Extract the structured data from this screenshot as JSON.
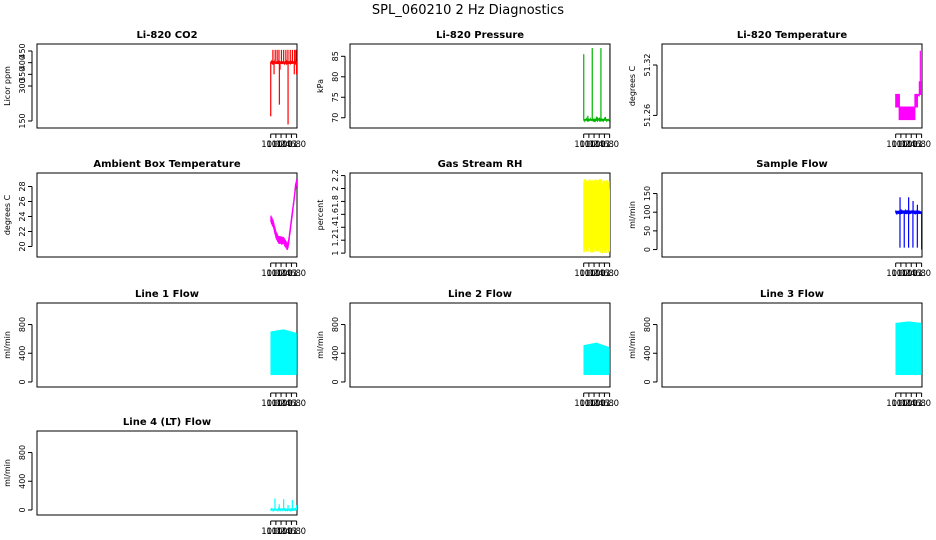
{
  "page": {
    "title": "SPL_060210  2 Hz Diagnostics"
  },
  "chart_data": [
    {
      "type": "line",
      "title": "Li-820 CO2",
      "ylabel": "Licor ppm",
      "color": "#ff0000",
      "xlim": [
        0.985,
        11.015
      ],
      "ylim": [
        120,
        480
      ],
      "xticks": [
        "10.0",
        "10.2",
        "10.4",
        "10.6",
        "10.8",
        "11.0"
      ],
      "yticks": [
        150,
        300,
        350,
        400,
        450
      ],
      "series": [
        {
          "baseline": 400,
          "noise": 6,
          "spikes": [
            [
              10.002,
              170
            ],
            [
              10.085,
              455
            ],
            [
              10.13,
              350
            ],
            [
              10.175,
              455
            ],
            [
              10.25,
              455
            ],
            [
              10.32,
              455
            ],
            [
              10.335,
              220
            ],
            [
              10.36,
              370
            ],
            [
              10.415,
              455
            ],
            [
              10.5,
              455
            ],
            [
              10.585,
              455
            ],
            [
              10.665,
              455
            ],
            [
              10.67,
              135
            ],
            [
              10.755,
              455
            ],
            [
              10.84,
              455
            ],
            [
              10.91,
              350
            ],
            [
              10.925,
              455
            ],
            [
              10.975,
              455
            ],
            [
              11.0,
              350
            ]
          ]
        }
      ]
    },
    {
      "type": "line",
      "title": "Li-820 Pressure",
      "ylabel": "kPa",
      "color": "#00b400",
      "xlim": [
        0.985,
        11.015
      ],
      "ylim": [
        67.5,
        88
      ],
      "xticks": [
        "10.0",
        "10.2",
        "10.4",
        "10.6",
        "10.8",
        "11.0"
      ],
      "yticks": [
        70,
        75,
        80,
        85
      ],
      "series": [
        {
          "baseline": 69.5,
          "noise": 0.2,
          "spikes": [
            [
              10.002,
              85.5
            ],
            [
              10.33,
              87
            ],
            [
              10.665,
              87
            ],
            [
              11.0,
              87
            ],
            [
              10.16,
              70.5
            ],
            [
              10.5,
              70.3
            ],
            [
              10.84,
              70.2
            ]
          ]
        }
      ]
    },
    {
      "type": "area",
      "title": "Li-820 Temperature",
      "ylabel": "degrees C",
      "color": "#ff00ff",
      "xlim": [
        0.985,
        11.015
      ],
      "ylim": [
        51.245,
        51.345
      ],
      "xticks": [
        "10.0",
        "10.2",
        "10.4",
        "10.6",
        "10.8",
        "11.0"
      ],
      "yticks": [
        51.26,
        51.32
      ],
      "series": [
        {
          "bands": [
            [
              10.0,
              10.14,
              51.27,
              51.285
            ],
            [
              10.14,
              10.74,
              51.255,
              51.27
            ],
            [
              10.74,
              10.84,
              51.27,
              51.285
            ],
            [
              10.84,
              10.91,
              51.285,
              51.285
            ],
            [
              10.91,
              11.0,
              51.285,
              51.3
            ]
          ],
          "peak": [
            10.95,
            51.337
          ]
        }
      ]
    },
    {
      "type": "line",
      "title": "Ambient Box Temperature",
      "ylabel": "degrees C",
      "color": "#ff00ff",
      "xlim": [
        0.985,
        11.015
      ],
      "ylim": [
        18.6,
        29.8
      ],
      "xticks": [
        "10.0",
        "10.2",
        "10.4",
        "10.6",
        "10.8",
        "11.0"
      ],
      "yticks": [
        20,
        22,
        24,
        26,
        28
      ],
      "series": [
        {
          "noise": 0.5,
          "points": [
            [
              10.0,
              23.7
            ],
            [
              10.1,
              23.0
            ],
            [
              10.2,
              21.6
            ],
            [
              10.3,
              20.9
            ],
            [
              10.4,
              20.8
            ],
            [
              10.5,
              20.8
            ],
            [
              10.6,
              20.2
            ],
            [
              10.65,
              19.9
            ],
            [
              10.7,
              20.8
            ],
            [
              10.8,
              23.5
            ],
            [
              10.9,
              26.2
            ],
            [
              10.95,
              27.8
            ],
            [
              11.0,
              28.5
            ]
          ]
        }
      ]
    },
    {
      "type": "area",
      "title": "Gas Stream RH",
      "ylabel": "percent",
      "color": "#ffff00",
      "xlim": [
        0.985,
        11.015
      ],
      "ylim": [
        0.94,
        2.24
      ],
      "xticks": [
        "10.0",
        "10.2",
        "10.4",
        "10.6",
        "10.8",
        "11.0"
      ],
      "yticks": [
        1.0,
        1.2,
        1.4,
        1.6,
        1.8,
        2.0,
        2.2
      ],
      "series": [
        {
          "low": 1.0,
          "high": 2.15,
          "core_low": 1.3,
          "core_high": 1.9
        }
      ]
    },
    {
      "type": "line",
      "title": "Sample Flow",
      "ylabel": "ml/min",
      "color": "#0000ff",
      "xlim": [
        0.985,
        11.015
      ],
      "ylim": [
        -20,
        205
      ],
      "xticks": [
        "10.0",
        "10.2",
        "10.4",
        "10.6",
        "10.8",
        "11.0"
      ],
      "yticks": [
        0,
        50,
        100,
        150
      ],
      "series": [
        {
          "baseline": 100,
          "noise": 5,
          "spikes": [
            [
              10.165,
              5
            ],
            [
              10.168,
              140
            ],
            [
              10.33,
              5
            ],
            [
              10.5,
              140
            ],
            [
              10.498,
              5
            ],
            [
              10.665,
              5
            ],
            [
              10.67,
              130
            ],
            [
              10.835,
              5
            ],
            [
              10.838,
              120
            ],
            [
              11.0,
              0
            ]
          ]
        }
      ]
    },
    {
      "type": "area",
      "title": "Line 1 Flow",
      "ylabel": "ml/min",
      "color": "#00ffff",
      "xlim": [
        0.985,
        11.015
      ],
      "ylim": [
        -70,
        1100
      ],
      "xticks": [
        "10.0",
        "10.2",
        "10.4",
        "10.6",
        "10.8",
        "11.0"
      ],
      "yticks": [
        0,
        400,
        800
      ],
      "series": [
        {
          "low": 100,
          "high_start": 700,
          "high_mid": 730,
          "high_end": 680,
          "gaps": [
            10.165,
            10.33,
            10.5,
            10.67,
            10.835
          ]
        }
      ]
    },
    {
      "type": "area",
      "title": "Line 2 Flow",
      "ylabel": "ml/min",
      "color": "#00ffff",
      "xlim": [
        0.985,
        11.015
      ],
      "ylim": [
        -70,
        1100
      ],
      "xticks": [
        "10.0",
        "10.2",
        "10.4",
        "10.6",
        "10.8",
        "11.0"
      ],
      "yticks": [
        0,
        400,
        800
      ],
      "series": [
        {
          "low": 100,
          "high_start": 510,
          "high_mid": 545,
          "high_end": 480,
          "gaps": [
            10.08,
            10.165,
            10.25,
            10.33,
            10.42,
            10.5,
            10.58,
            10.67,
            10.75,
            10.8,
            10.835,
            10.9,
            10.95
          ]
        }
      ]
    },
    {
      "type": "area",
      "title": "Line 3 Flow",
      "ylabel": "ml/min",
      "color": "#00ffff",
      "xlim": [
        0.985,
        11.015
      ],
      "ylim": [
        -70,
        1100
      ],
      "xticks": [
        "10.0",
        "10.2",
        "10.4",
        "10.6",
        "10.8",
        "11.0"
      ],
      "yticks": [
        0,
        400,
        800
      ],
      "series": [
        {
          "low": 100,
          "high_start": 820,
          "high_mid": 840,
          "high_end": 820,
          "gaps": [
            10.08,
            10.12,
            10.165,
            10.25,
            10.33,
            10.42,
            10.46,
            10.5,
            10.58,
            10.63,
            10.67,
            10.75,
            10.8,
            10.835,
            10.88,
            10.93
          ]
        }
      ]
    },
    {
      "type": "line",
      "title": "Line 4 (LT) Flow",
      "ylabel": "ml/min",
      "color": "#00ffff",
      "xlim": [
        0.985,
        11.015
      ],
      "ylim": [
        -70,
        1100
      ],
      "xticks": [
        "10.0",
        "10.2",
        "10.4",
        "10.6",
        "10.8",
        "11.0"
      ],
      "yticks": [
        0,
        400,
        800
      ],
      "series": [
        {
          "baseline": 5,
          "noise": 4,
          "spikes": [
            [
              10.165,
              160
            ],
            [
              10.33,
              80
            ],
            [
              10.5,
              150
            ],
            [
              10.67,
              70
            ],
            [
              10.835,
              140
            ],
            [
              11.0,
              70
            ]
          ]
        }
      ]
    }
  ]
}
